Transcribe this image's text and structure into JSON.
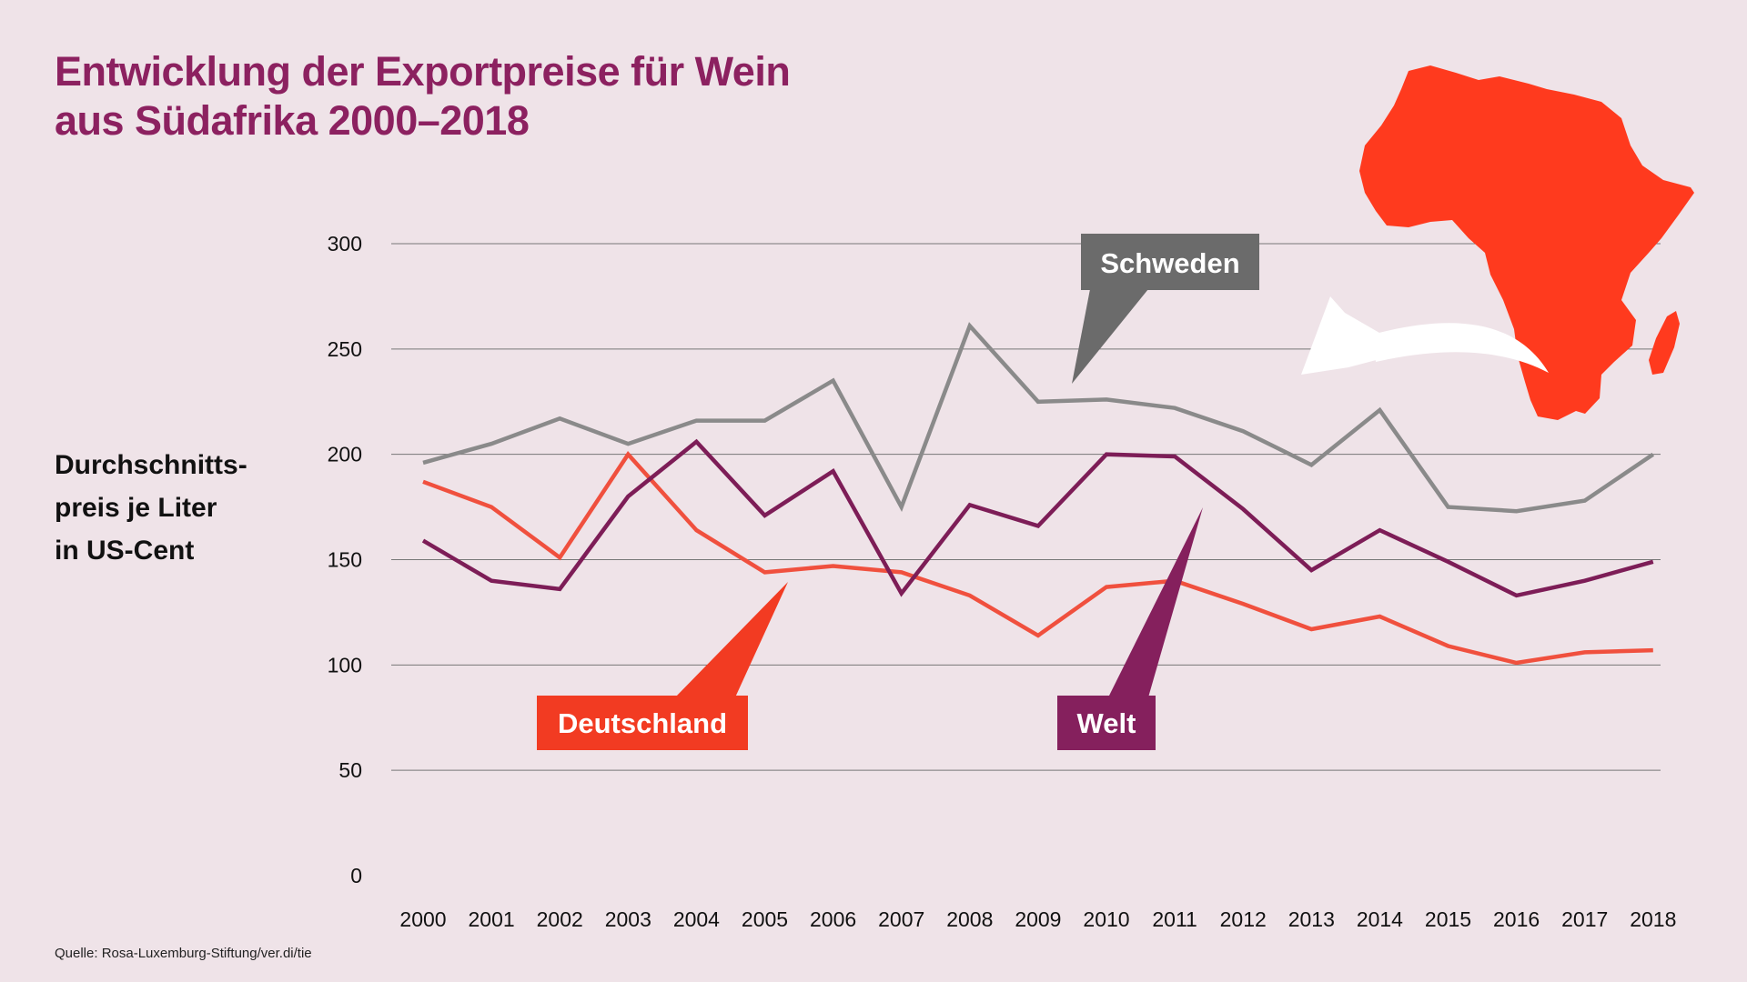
{
  "title": {
    "line1": "Entwicklung der Exportpreise für Wein",
    "line2": "aus Südafrika 2000–2018"
  },
  "ylabel": {
    "line1": "Durchschnitts-",
    "line2": "preis je Liter",
    "line3": "in US-Cent"
  },
  "source": "Quelle: Rosa-Luxemburg-Stiftung/ver.di/tie",
  "icons": {
    "map": "africa-map-icon",
    "arrow": "curved-arrow-icon"
  },
  "colors": {
    "background": "#efe3e8",
    "title": "#8c2160",
    "schweden": "#8a8a8a",
    "schweden_box": "#6b6b6b",
    "deutschland": "#f0503e",
    "deutschland_box": "#f23b22",
    "welt": "#7d1d57",
    "welt_box": "#85205d",
    "africa": "#ff3a1e"
  },
  "chart_data": {
    "type": "line",
    "x": [
      "2000",
      "2001",
      "2002",
      "2003",
      "2004",
      "2005",
      "2006",
      "2007",
      "2008",
      "2009",
      "2010",
      "2011",
      "2012",
      "2013",
      "2014",
      "2015",
      "2016",
      "2017",
      "2018"
    ],
    "ylim": [
      0,
      300
    ],
    "yticks": [
      0,
      50,
      100,
      150,
      200,
      250,
      300
    ],
    "grid": true,
    "series": [
      {
        "name": "Schweden",
        "values": [
          196,
          205,
          217,
          205,
          216,
          216,
          235,
          175,
          261,
          225,
          226,
          222,
          211,
          195,
          221,
          175,
          173,
          178,
          200
        ]
      },
      {
        "name": "Deutschland",
        "values": [
          187,
          175,
          151,
          200,
          164,
          144,
          147,
          144,
          133,
          114,
          137,
          140,
          129,
          117,
          123,
          109,
          101,
          106,
          107
        ]
      },
      {
        "name": "Welt",
        "values": [
          159,
          140,
          136,
          180,
          206,
          171,
          192,
          134,
          176,
          166,
          200,
          199,
          174,
          145,
          164,
          149,
          133,
          140,
          149
        ]
      }
    ]
  }
}
